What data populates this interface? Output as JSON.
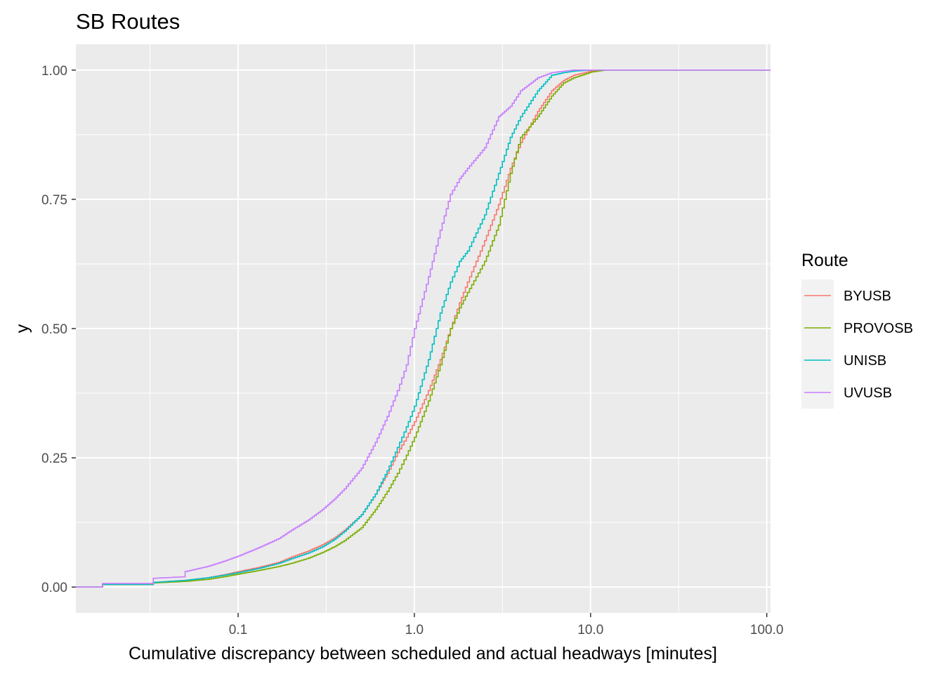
{
  "chart_data": {
    "type": "line",
    "title": "SB Routes",
    "xlabel": "Cumulative discrepancy between scheduled and actual headways [minutes]",
    "ylabel": "y",
    "x_scale": "log10",
    "xlim": [
      0.012,
      105
    ],
    "ylim": [
      -0.05,
      1.05
    ],
    "x_ticks": [
      {
        "value": 0.1,
        "label": "0.1"
      },
      {
        "value": 1,
        "label": "1.0"
      },
      {
        "value": 10,
        "label": "10.0"
      },
      {
        "value": 100,
        "label": "100.0"
      }
    ],
    "y_ticks": [
      {
        "value": 0,
        "label": "0.00"
      },
      {
        "value": 0.25,
        "label": "0.25"
      },
      {
        "value": 0.5,
        "label": "0.50"
      },
      {
        "value": 0.75,
        "label": "0.75"
      },
      {
        "value": 1,
        "label": "1.00"
      }
    ],
    "grid": true,
    "legend": {
      "title": "Route",
      "position": "right"
    },
    "series": [
      {
        "name": "BYUSB",
        "color": "#F8766D",
        "points": [
          [
            0.012,
            0
          ],
          [
            0.017,
            0
          ],
          [
            0.017,
            0.005
          ],
          [
            0.033,
            0.005
          ],
          [
            0.033,
            0.009
          ],
          [
            0.05,
            0.013
          ],
          [
            0.067,
            0.018
          ],
          [
            0.083,
            0.024
          ],
          [
            0.1,
            0.03
          ],
          [
            0.13,
            0.038
          ],
          [
            0.17,
            0.048
          ],
          [
            0.2,
            0.058
          ],
          [
            0.25,
            0.07
          ],
          [
            0.3,
            0.082
          ],
          [
            0.35,
            0.095
          ],
          [
            0.4,
            0.11
          ],
          [
            0.5,
            0.14
          ],
          [
            0.6,
            0.18
          ],
          [
            0.7,
            0.22
          ],
          [
            0.8,
            0.26
          ],
          [
            0.9,
            0.29
          ],
          [
            1.0,
            0.32
          ],
          [
            1.2,
            0.38
          ],
          [
            1.4,
            0.44
          ],
          [
            1.6,
            0.5
          ],
          [
            1.8,
            0.55
          ],
          [
            2.0,
            0.59
          ],
          [
            2.5,
            0.67
          ],
          [
            3.0,
            0.74
          ],
          [
            3.5,
            0.81
          ],
          [
            4.0,
            0.86
          ],
          [
            5.0,
            0.92
          ],
          [
            6.0,
            0.96
          ],
          [
            7.0,
            0.98
          ],
          [
            8.0,
            0.99
          ],
          [
            10.0,
            0.998
          ],
          [
            12.0,
            1.0
          ],
          [
            105,
            1.0
          ]
        ]
      },
      {
        "name": "PROVOSB",
        "color": "#7CAE00",
        "points": [
          [
            0.012,
            0
          ],
          [
            0.017,
            0
          ],
          [
            0.017,
            0.005
          ],
          [
            0.033,
            0.005
          ],
          [
            0.033,
            0.008
          ],
          [
            0.05,
            0.011
          ],
          [
            0.067,
            0.015
          ],
          [
            0.083,
            0.02
          ],
          [
            0.1,
            0.025
          ],
          [
            0.13,
            0.032
          ],
          [
            0.17,
            0.04
          ],
          [
            0.2,
            0.046
          ],
          [
            0.25,
            0.056
          ],
          [
            0.3,
            0.067
          ],
          [
            0.35,
            0.078
          ],
          [
            0.4,
            0.09
          ],
          [
            0.5,
            0.115
          ],
          [
            0.6,
            0.15
          ],
          [
            0.7,
            0.185
          ],
          [
            0.8,
            0.22
          ],
          [
            0.9,
            0.255
          ],
          [
            1.0,
            0.29
          ],
          [
            1.2,
            0.36
          ],
          [
            1.4,
            0.43
          ],
          [
            1.6,
            0.5
          ],
          [
            1.8,
            0.54
          ],
          [
            2.0,
            0.57
          ],
          [
            2.5,
            0.63
          ],
          [
            3.0,
            0.7
          ],
          [
            3.5,
            0.8
          ],
          [
            4.0,
            0.87
          ],
          [
            5.0,
            0.91
          ],
          [
            6.0,
            0.95
          ],
          [
            7.0,
            0.975
          ],
          [
            8.0,
            0.985
          ],
          [
            10.0,
            0.996
          ],
          [
            12.0,
            1.0
          ],
          [
            105,
            1.0
          ]
        ]
      },
      {
        "name": "UNISB",
        "color": "#00BFC4",
        "points": [
          [
            0.012,
            0
          ],
          [
            0.017,
            0
          ],
          [
            0.017,
            0.005
          ],
          [
            0.033,
            0.005
          ],
          [
            0.033,
            0.009
          ],
          [
            0.05,
            0.013
          ],
          [
            0.067,
            0.018
          ],
          [
            0.083,
            0.023
          ],
          [
            0.1,
            0.028
          ],
          [
            0.13,
            0.036
          ],
          [
            0.17,
            0.046
          ],
          [
            0.2,
            0.055
          ],
          [
            0.25,
            0.066
          ],
          [
            0.3,
            0.078
          ],
          [
            0.35,
            0.092
          ],
          [
            0.4,
            0.108
          ],
          [
            0.5,
            0.14
          ],
          [
            0.6,
            0.18
          ],
          [
            0.7,
            0.225
          ],
          [
            0.8,
            0.27
          ],
          [
            0.9,
            0.31
          ],
          [
            1.0,
            0.35
          ],
          [
            1.2,
            0.44
          ],
          [
            1.4,
            0.53
          ],
          [
            1.6,
            0.59
          ],
          [
            1.8,
            0.63
          ],
          [
            2.0,
            0.65
          ],
          [
            2.5,
            0.72
          ],
          [
            3.0,
            0.8
          ],
          [
            3.5,
            0.87
          ],
          [
            4.0,
            0.91
          ],
          [
            5.0,
            0.96
          ],
          [
            6.0,
            0.99
          ],
          [
            7.0,
            0.995
          ],
          [
            8.0,
            0.998
          ],
          [
            10.0,
            1.0
          ],
          [
            105,
            1.0
          ]
        ]
      },
      {
        "name": "UVUSB",
        "color": "#C77CFF",
        "points": [
          [
            0.012,
            0
          ],
          [
            0.017,
            0
          ],
          [
            0.017,
            0.007
          ],
          [
            0.033,
            0.007
          ],
          [
            0.033,
            0.017
          ],
          [
            0.05,
            0.02
          ],
          [
            0.05,
            0.03
          ],
          [
            0.067,
            0.04
          ],
          [
            0.083,
            0.05
          ],
          [
            0.1,
            0.06
          ],
          [
            0.13,
            0.076
          ],
          [
            0.17,
            0.094
          ],
          [
            0.2,
            0.11
          ],
          [
            0.25,
            0.13
          ],
          [
            0.3,
            0.15
          ],
          [
            0.35,
            0.17
          ],
          [
            0.4,
            0.19
          ],
          [
            0.5,
            0.23
          ],
          [
            0.6,
            0.28
          ],
          [
            0.7,
            0.33
          ],
          [
            0.8,
            0.38
          ],
          [
            0.9,
            0.43
          ],
          [
            1.0,
            0.5
          ],
          [
            1.2,
            0.6
          ],
          [
            1.4,
            0.69
          ],
          [
            1.6,
            0.76
          ],
          [
            1.8,
            0.79
          ],
          [
            2.0,
            0.81
          ],
          [
            2.5,
            0.85
          ],
          [
            3.0,
            0.91
          ],
          [
            3.5,
            0.93
          ],
          [
            4.0,
            0.96
          ],
          [
            5.0,
            0.985
          ],
          [
            6.0,
            0.995
          ],
          [
            7.0,
            0.998
          ],
          [
            8.0,
            1.0
          ],
          [
            105,
            1.0
          ]
        ]
      }
    ]
  }
}
